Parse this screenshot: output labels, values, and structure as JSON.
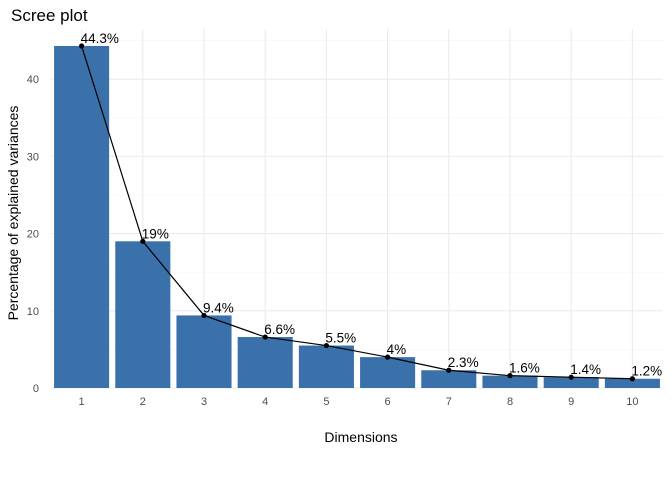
{
  "chart_data": {
    "type": "bar",
    "title": "Scree plot",
    "xlabel": "Dimensions",
    "ylabel": "Percentage of explained variances",
    "categories": [
      "1",
      "2",
      "3",
      "4",
      "5",
      "6",
      "7",
      "8",
      "9",
      "10"
    ],
    "values": [
      44.3,
      19.0,
      9.4,
      6.6,
      5.5,
      4.0,
      2.3,
      1.6,
      1.4,
      1.2
    ],
    "data_labels": [
      "44.3%",
      "19%",
      "9.4%",
      "6.6%",
      "5.5%",
      "4%",
      "2.3%",
      "1.6%",
      "1.4%",
      "1.2%"
    ],
    "yticks": [
      0,
      10,
      20,
      30,
      40
    ],
    "ylim": [
      0,
      46.5
    ],
    "grid": true,
    "overlay_line": true,
    "colors": {
      "bar": "#3a71aa",
      "line": "#000000",
      "grid_major": "#ebebeb",
      "grid_minor": "#f4f4f4"
    }
  }
}
